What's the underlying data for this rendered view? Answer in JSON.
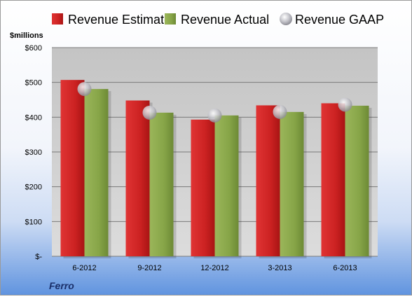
{
  "chart_data": {
    "type": "bar",
    "categories": [
      "6-2012",
      "9-2012",
      "12-2012",
      "3-2013",
      "6-2013"
    ],
    "series": [
      {
        "name": "Revenue Estimate",
        "kind": "bar",
        "color": "#cc2020",
        "values": [
          507,
          448,
          393,
          434,
          440
        ]
      },
      {
        "name": "Revenue Actual",
        "kind": "bar",
        "color": "#8aa84a",
        "values": [
          481,
          413,
          405,
          415,
          433
        ]
      },
      {
        "name": "Revenue GAAP",
        "kind": "marker",
        "color": "#c8c8cc",
        "values": [
          481,
          413,
          405,
          415,
          436
        ]
      }
    ],
    "ylabel": "$millions",
    "ylim": [
      0,
      600
    ],
    "yticks": [
      {
        "value": 0,
        "label": "$-"
      },
      {
        "value": 100,
        "label": "$100"
      },
      {
        "value": 200,
        "label": "$200"
      },
      {
        "value": 300,
        "label": "$300"
      },
      {
        "value": 400,
        "label": "$400"
      },
      {
        "value": 500,
        "label": "$500"
      },
      {
        "value": 600,
        "label": "$600"
      }
    ],
    "grid": true,
    "legend_position": "top",
    "company": "Ferro"
  }
}
